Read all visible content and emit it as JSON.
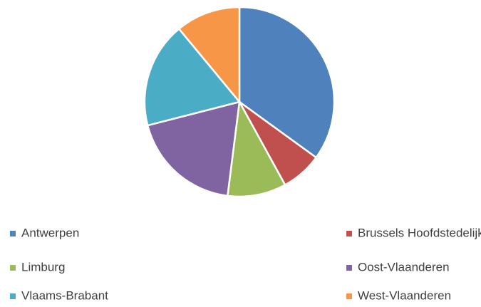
{
  "chart_data": {
    "type": "pie",
    "categories": [
      "Antwerpen",
      "Brussels Hoofdstedelijk Gewest",
      "Limburg",
      "Oost-Vlaanderen",
      "Vlaams-Brabant",
      "West-Vlaanderen"
    ],
    "values": [
      35,
      7,
      10,
      19,
      18,
      11
    ],
    "colors": [
      "#4f81bd",
      "#c0504d",
      "#9bbb59",
      "#8064a2",
      "#4bacc6",
      "#f79646"
    ],
    "legend": "bottom"
  }
}
